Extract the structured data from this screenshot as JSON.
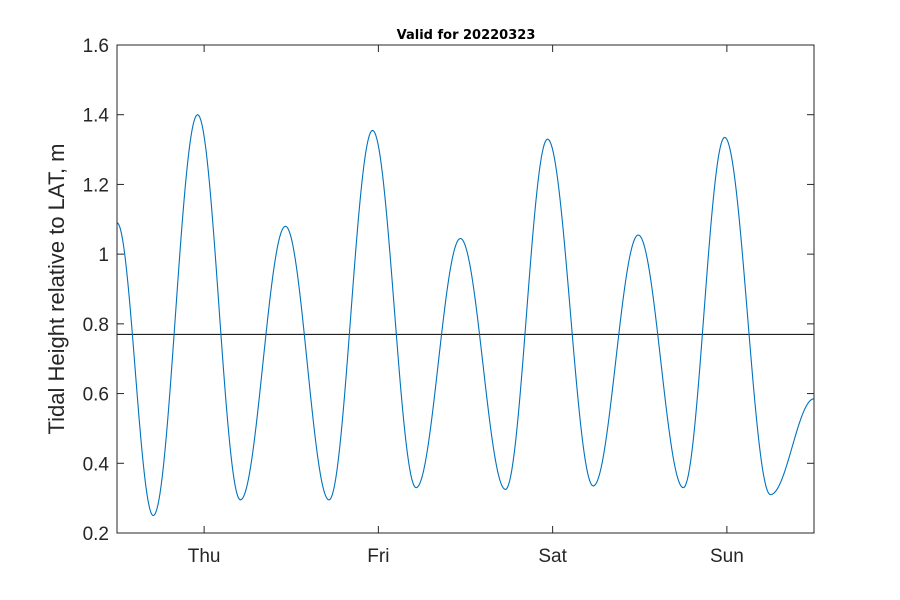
{
  "chart_data": {
    "type": "line",
    "title": "Valid for 20220323",
    "xlabel": "",
    "ylabel": "Tidal Height relative to LAT, m",
    "x_unit": "hours",
    "xlim": [
      -12,
      84
    ],
    "ylim": [
      0.2,
      1.6
    ],
    "yticks": [
      0.2,
      0.4,
      0.6,
      0.8,
      1,
      1.2,
      1.4,
      1.6
    ],
    "ytick_labels": [
      "0.2",
      "0.4",
      "0.6",
      "0.8",
      "1",
      "1.2",
      "1.4",
      "1.6"
    ],
    "xticks": [
      0,
      24,
      48,
      72
    ],
    "xtick_labels": [
      "Thu",
      "Fri",
      "Sat",
      "Sun"
    ],
    "grid": false,
    "reference_line": {
      "y": 0.77,
      "color": "#000000"
    },
    "series": [
      {
        "color": "#0072BD",
        "points": [
          [
            -12.0,
            1.09
          ],
          [
            -7.0,
            0.25
          ],
          [
            -0.9,
            1.4
          ],
          [
            5.0,
            0.295
          ],
          [
            11.2,
            1.08
          ],
          [
            17.2,
            0.295
          ],
          [
            23.2,
            1.355
          ],
          [
            29.2,
            0.33
          ],
          [
            35.3,
            1.045
          ],
          [
            41.5,
            0.325
          ],
          [
            47.3,
            1.33
          ],
          [
            53.6,
            0.335
          ],
          [
            59.8,
            1.055
          ],
          [
            66.0,
            0.33
          ],
          [
            71.7,
            1.335
          ],
          [
            78.0,
            0.31
          ],
          [
            84.0,
            0.585
          ]
        ]
      }
    ]
  }
}
